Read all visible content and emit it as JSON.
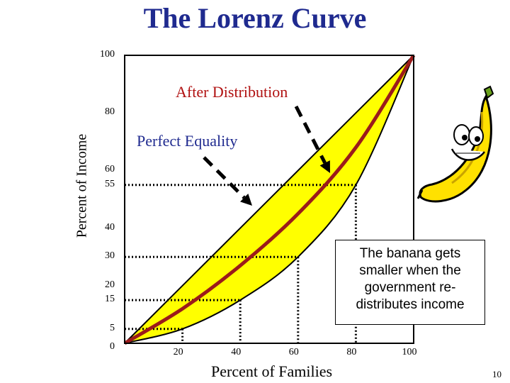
{
  "slide": {
    "title": "The Lorenz Curve",
    "page_number": "10"
  },
  "annotations": {
    "after_distribution": "After Distribution",
    "perfect_equality": "Perfect Equality",
    "note": "The banana gets smaller when the government re-distributes income",
    "note_lines": [
      "The banana gets",
      "smaller when the",
      "government re-",
      "distributes income"
    ]
  },
  "colors": {
    "title": "#1f2a8f",
    "banana_fill": "#ffff00",
    "curve": "#9b1b1b",
    "after_label": "#b01010",
    "equality_label": "#1f2a8f"
  },
  "chart_data": {
    "type": "line",
    "xlabel": "Percent of Families",
    "ylabel": "Percent of Income",
    "xlim": [
      0,
      100
    ],
    "ylim": [
      0,
      100
    ],
    "x_ticks": [
      "20",
      "40",
      "60",
      "80",
      "100"
    ],
    "y_ticks": [
      "0",
      "5",
      "15",
      "20",
      "30",
      "40",
      "55",
      "60",
      "80",
      "100"
    ],
    "series": [
      {
        "name": "Perfect Equality",
        "x": [
          0,
          100
        ],
        "y": [
          0,
          100
        ]
      },
      {
        "name": "",
        "x": [
          0,
          20,
          40,
          60,
          80,
          100
        ],
        "y": [
          0,
          5,
          15,
          30,
          55,
          100
        ]
      },
      {
        "name": "After Distribution",
        "x": [
          0,
          20,
          40,
          60,
          80,
          100
        ],
        "y": [
          0,
          12,
          27,
          45,
          68,
          100
        ]
      }
    ],
    "reference_points": [
      {
        "x": 20,
        "y": 5
      },
      {
        "x": 40,
        "y": 15
      },
      {
        "x": 60,
        "y": 30
      },
      {
        "x": 80,
        "y": 55
      }
    ],
    "grid": false,
    "legend": "none"
  }
}
